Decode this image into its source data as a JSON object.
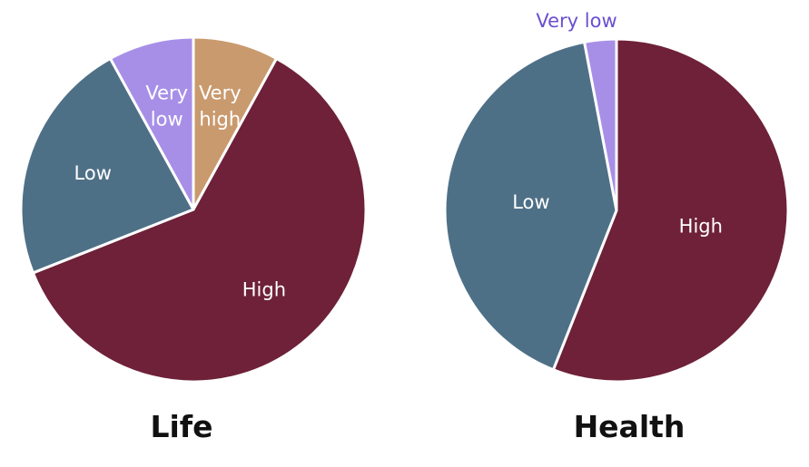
{
  "colors": {
    "very_low": "#a78fe8",
    "low": "#4e7087",
    "high": "#6e2139",
    "very_high": "#c99a6e",
    "label_light": "#ffffff",
    "label_outside": "#6a4fd0"
  },
  "chart_data": [
    {
      "type": "pie",
      "title": "Life",
      "slices": [
        {
          "label": "Very high",
          "lines": [
            "Very",
            "high"
          ],
          "value": 8,
          "color": "#c99a6e"
        },
        {
          "label": "High",
          "lines": [
            "High"
          ],
          "value": 61,
          "color": "#6e2139"
        },
        {
          "label": "Low",
          "lines": [
            "Low"
          ],
          "value": 23,
          "color": "#4e7087"
        },
        {
          "label": "Very low",
          "lines": [
            "Very",
            "low"
          ],
          "value": 8,
          "color": "#a78fe8"
        }
      ]
    },
    {
      "type": "pie",
      "title": "Health",
      "slices": [
        {
          "label": "High",
          "lines": [
            "High"
          ],
          "value": 56,
          "color": "#6e2139"
        },
        {
          "label": "Low",
          "lines": [
            "Low"
          ],
          "value": 41,
          "color": "#4e7087"
        },
        {
          "label": "Very low",
          "lines": [
            "Very low"
          ],
          "value": 3,
          "color": "#a78fe8",
          "outside": true
        }
      ]
    }
  ]
}
